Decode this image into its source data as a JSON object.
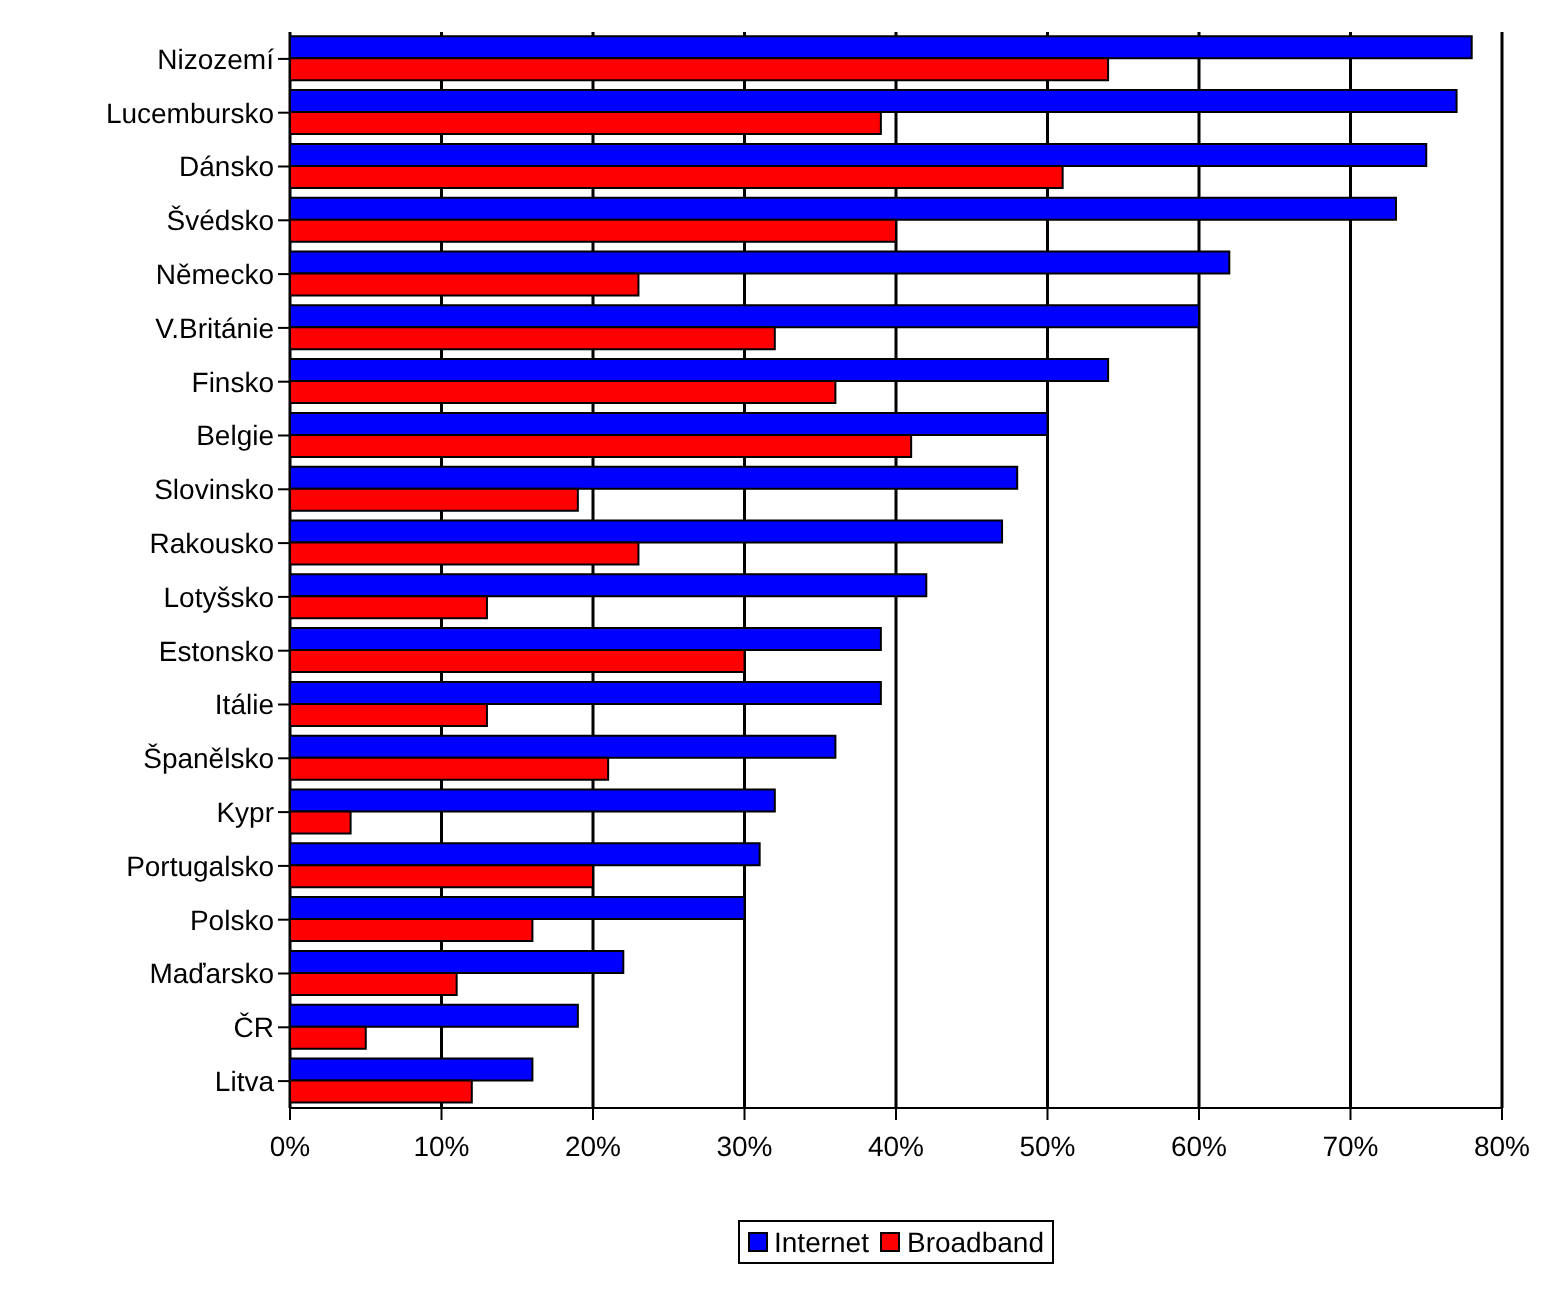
{
  "chart_data": {
    "type": "bar",
    "orientation": "horizontal",
    "categories": [
      "Nizozemí",
      "Lucembursko",
      "Dánsko",
      "Švédsko",
      "Německo",
      "V.Británie",
      "Finsko",
      "Belgie",
      "Slovinsko",
      "Rakousko",
      "Lotyšsko",
      "Estonsko",
      "Itálie",
      "Španělsko",
      "Kypr",
      "Portugalsko",
      "Polsko",
      "Maďarsko",
      "ČR",
      "Litva"
    ],
    "series": [
      {
        "name": "Internet",
        "color": "#0000ff",
        "values": [
          78,
          77,
          75,
          73,
          62,
          60,
          54,
          50,
          48,
          47,
          42,
          39,
          39,
          36,
          32,
          31,
          30,
          22,
          19,
          16
        ]
      },
      {
        "name": "Broadband",
        "color": "#ff0000",
        "values": [
          54,
          39,
          51,
          40,
          23,
          32,
          36,
          41,
          19,
          23,
          13,
          30,
          13,
          21,
          4,
          20,
          16,
          11,
          5,
          12
        ]
      }
    ],
    "xlim": [
      0,
      80
    ],
    "xticks": [
      {
        "value": 0,
        "label": "0%"
      },
      {
        "value": 10,
        "label": "10%"
      },
      {
        "value": 20,
        "label": "20%"
      },
      {
        "value": 30,
        "label": "30%"
      },
      {
        "value": 40,
        "label": "40%"
      },
      {
        "value": 50,
        "label": "50%"
      },
      {
        "value": 60,
        "label": "60%"
      },
      {
        "value": 70,
        "label": "70%"
      },
      {
        "value": 80,
        "label": "80%"
      }
    ],
    "grid": "x",
    "legend": "bottom"
  }
}
